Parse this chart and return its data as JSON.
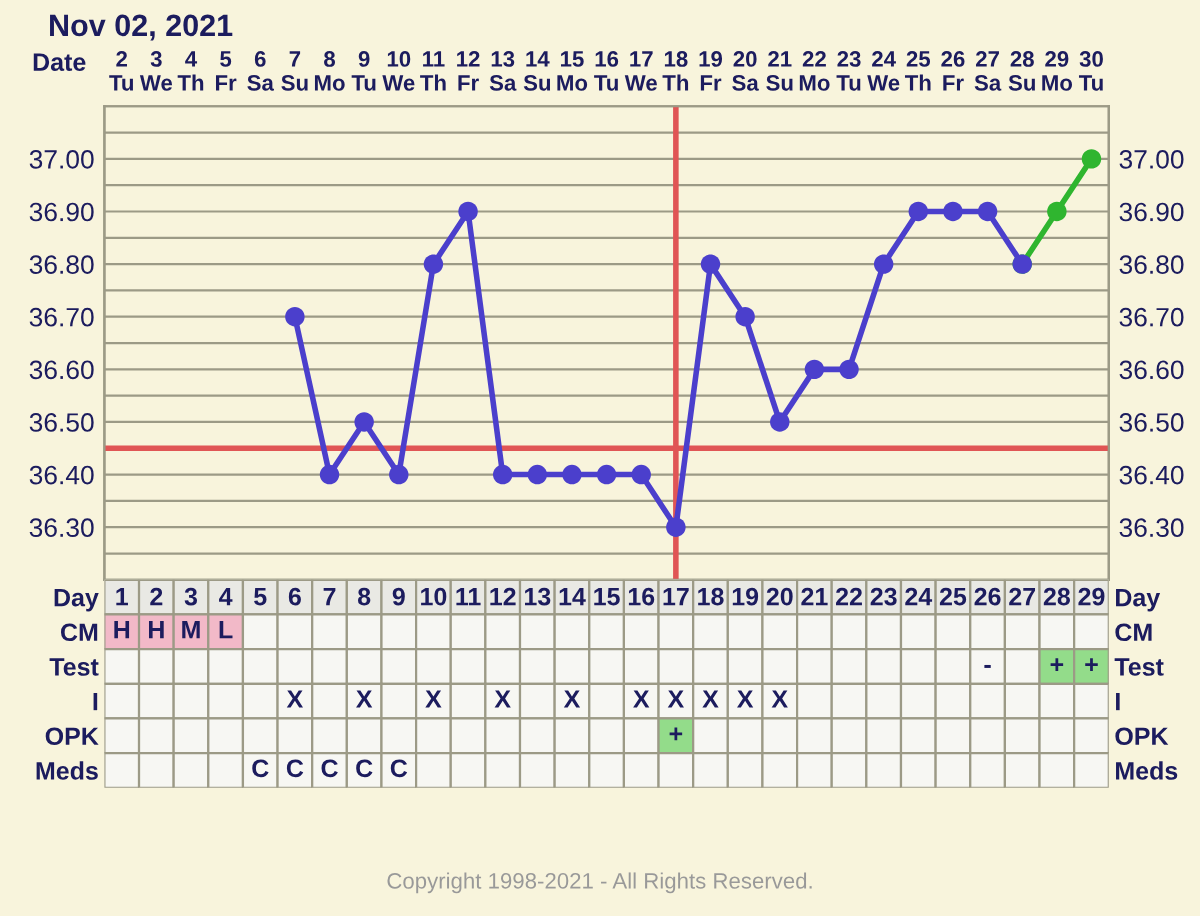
{
  "chart_data": [
    {
      "type": "line",
      "title": "Nov 02, 2021",
      "xlabel": "Date",
      "categories": [
        "2\nTu",
        "3\nWe",
        "4\nTh",
        "5\nFr",
        "6\nSa",
        "7\nSu",
        "8\nMo",
        "9\nTu",
        "10\nWe",
        "11\nTh",
        "12\nFr",
        "13\nSa",
        "14\nSu",
        "15\nMo",
        "16\nTu",
        "17\nWe",
        "18\nTh",
        "19\nFr",
        "20\nSa",
        "21\nSu",
        "22\nMo",
        "23\nTu",
        "24\nWe",
        "25\nTh",
        "26\nFr",
        "27\nSa",
        "28\nSu",
        "29\nMo",
        "30\nTu"
      ],
      "series": [
        {
          "color": "#4b3fcc",
          "values": [
            null,
            null,
            null,
            null,
            null,
            36.7,
            36.4,
            36.5,
            36.4,
            36.8,
            36.9,
            36.4,
            36.4,
            36.4,
            36.4,
            36.4,
            36.3,
            36.8,
            36.7,
            36.5,
            36.6,
            36.6,
            36.8,
            36.9,
            36.9,
            36.9,
            36.8,
            null,
            null
          ]
        },
        {
          "color": "#2fb52f",
          "values": [
            null,
            null,
            null,
            null,
            null,
            null,
            null,
            null,
            null,
            null,
            null,
            null,
            null,
            null,
            null,
            null,
            null,
            null,
            null,
            null,
            null,
            null,
            null,
            null,
            null,
            null,
            36.8,
            36.9,
            37.0
          ]
        }
      ],
      "ylim": [
        36.2,
        37.1
      ],
      "yticks": [
        {
          "value": 36.25,
          "label": null
        },
        {
          "value": 36.3,
          "label": "36.30"
        },
        {
          "value": 36.35,
          "label": null
        },
        {
          "value": 36.4,
          "label": "36.40"
        },
        {
          "value": 36.5,
          "label": "36.50"
        },
        {
          "value": 36.55,
          "label": null
        },
        {
          "value": 36.6,
          "label": "36.60"
        },
        {
          "value": 36.65,
          "label": null
        },
        {
          "value": 36.7,
          "label": "36.70"
        },
        {
          "value": 36.75,
          "label": null
        },
        {
          "value": 36.8,
          "label": "36.80"
        },
        {
          "value": 36.85,
          "label": null
        },
        {
          "value": 36.9,
          "label": "36.90"
        },
        {
          "value": 36.95,
          "label": null
        },
        {
          "value": 37.0,
          "label": "37.00"
        },
        {
          "value": 37.05,
          "label": null
        }
      ],
      "y2lim": [
        36.2,
        37.1
      ],
      "y2ticks": [
        {
          "value": 36.25,
          "label": null
        },
        {
          "value": 36.3,
          "label": "36.30"
        },
        {
          "value": 36.35,
          "label": null
        },
        {
          "value": 36.4,
          "label": "36.40"
        },
        {
          "value": 36.5,
          "label": "36.50"
        },
        {
          "value": 36.55,
          "label": null
        },
        {
          "value": 36.6,
          "label": "36.60"
        },
        {
          "value": 36.65,
          "label": null
        },
        {
          "value": 36.7,
          "label": "36.70"
        },
        {
          "value": 36.75,
          "label": null
        },
        {
          "value": 36.8,
          "label": "36.80"
        },
        {
          "value": 36.85,
          "label": null
        },
        {
          "value": 36.9,
          "label": "36.90"
        },
        {
          "value": 36.95,
          "label": null
        },
        {
          "value": 37.0,
          "label": "37.00"
        },
        {
          "value": 37.05,
          "label": null
        }
      ],
      "ref_lines": [
        {
          "axis": "y",
          "value": 36.45,
          "color": "#e05555"
        },
        {
          "axis": "x",
          "value": "18\nTh",
          "color": "#e05555"
        }
      ],
      "grid": true,
      "marker": "circle",
      "line_style": "solid",
      "legend": false
    },
    {
      "type": "heatmap",
      "cells": [
        [
          null,
          null,
          null,
          null,
          null,
          null,
          null,
          null,
          null,
          null,
          null,
          null,
          null,
          null,
          null,
          null,
          null,
          null,
          null,
          null,
          null,
          null,
          null,
          null,
          null,
          null,
          null,
          null,
          null
        ],
        [
          null,
          null,
          null,
          null,
          null,
          null,
          null,
          null,
          null,
          null,
          null,
          null,
          null,
          null,
          null,
          null,
          null,
          null,
          null,
          null,
          null,
          null,
          null,
          null,
          null,
          null,
          null,
          null,
          null
        ],
        [
          null,
          null,
          null,
          null,
          null,
          null,
          null,
          null,
          null,
          null,
          null,
          null,
          null,
          null,
          null,
          null,
          null,
          null,
          null,
          null,
          null,
          null,
          null,
          null,
          null,
          null,
          null,
          null,
          null
        ],
        [
          null,
          null,
          null,
          null,
          null,
          null,
          null,
          null,
          null,
          null,
          null,
          null,
          null,
          null,
          null,
          null,
          null,
          null,
          null,
          null,
          null,
          null,
          null,
          null,
          null,
          null,
          null,
          null,
          null
        ],
        [
          null,
          null,
          null,
          null,
          null,
          null,
          null,
          null,
          null,
          null,
          null,
          null,
          null,
          null,
          null,
          null,
          null,
          null,
          null,
          null,
          null,
          null,
          null,
          null,
          null,
          null,
          null,
          null,
          null
        ],
        [
          null,
          null,
          null,
          null,
          null,
          null,
          null,
          null,
          null,
          null,
          null,
          null,
          null,
          null,
          null,
          null,
          null,
          null,
          null,
          null,
          null,
          null,
          null,
          null,
          null,
          null,
          null,
          null,
          null
        ]
      ],
      "categories": [
        "1",
        "2",
        "3",
        "4",
        "5",
        "6",
        "7",
        "8",
        "9",
        "10",
        "11",
        "12",
        "13",
        "14",
        "15",
        "16",
        "17",
        "18",
        "19",
        "20",
        "21",
        "22",
        "23",
        "24",
        "25",
        "26",
        "27",
        "28",
        "29"
      ],
      "y_categories": [
        "Day",
        "CM",
        "Test",
        "I",
        "OPK",
        "Meds"
      ],
      "y2_categories": [
        "Day",
        "CM",
        "Test",
        "I",
        "OPK",
        "Meds"
      ],
      "cell_labels": [
        [
          null,
          null,
          null,
          null,
          null,
          null,
          null,
          null,
          null,
          null,
          null,
          null,
          null,
          null,
          null,
          null,
          null,
          null,
          null,
          null,
          null,
          null,
          null,
          null,
          null,
          null,
          null,
          null,
          null
        ],
        [
          "H",
          "H",
          "M",
          "L",
          null,
          null,
          null,
          null,
          null,
          null,
          null,
          null,
          null,
          null,
          null,
          null,
          null,
          null,
          null,
          null,
          null,
          null,
          null,
          null,
          null,
          null,
          null,
          null,
          null
        ],
        [
          null,
          null,
          null,
          null,
          null,
          null,
          null,
          null,
          null,
          null,
          null,
          null,
          null,
          null,
          null,
          null,
          null,
          null,
          null,
          null,
          null,
          null,
          null,
          null,
          null,
          "-",
          null,
          "+",
          "+"
        ],
        [
          null,
          null,
          null,
          null,
          null,
          "X",
          null,
          "X",
          null,
          "X",
          null,
          "X",
          null,
          "X",
          null,
          "X",
          "X",
          "X",
          "X",
          "X",
          null,
          null,
          null,
          null,
          null,
          null,
          null,
          null,
          null
        ],
        [
          null,
          null,
          null,
          null,
          null,
          null,
          null,
          null,
          null,
          null,
          null,
          null,
          null,
          null,
          null,
          null,
          "+",
          null,
          null,
          null,
          null,
          null,
          null,
          null,
          null,
          null,
          null,
          null,
          null
        ],
        [
          null,
          null,
          null,
          null,
          "C",
          "C",
          "C",
          "C",
          "C",
          null,
          null,
          null,
          null,
          null,
          null,
          null,
          null,
          null,
          null,
          null,
          null,
          null,
          null,
          null,
          null,
          null,
          null,
          null,
          null
        ]
      ],
      "colors": [
        [
          "#e9e9e4",
          "#e9e9e4",
          "#e9e9e4",
          "#e9e9e4",
          "#e9e9e4",
          "#e9e9e4",
          "#e9e9e4",
          "#e9e9e4",
          "#e9e9e4",
          "#e9e9e4",
          "#e9e9e4",
          "#e9e9e4",
          "#e9e9e4",
          "#e9e9e4",
          "#e9e9e4",
          "#e9e9e4",
          "#e9e9e4",
          "#e9e9e4",
          "#e9e9e4",
          "#e9e9e4",
          "#e9e9e4",
          "#e9e9e4",
          "#e9e9e4",
          "#e9e9e4",
          "#e9e9e4",
          "#e9e9e4",
          "#e9e9e4",
          "#e9e9e4",
          "#e9e9e4"
        ],
        [
          "#f2b9c8",
          "#f2b9c8",
          "#f2b9c8",
          "#f2b9c8",
          null,
          null,
          null,
          null,
          null,
          null,
          null,
          null,
          null,
          null,
          null,
          null,
          null,
          null,
          null,
          null,
          null,
          null,
          null,
          null,
          null,
          null,
          null,
          null,
          null
        ],
        [
          null,
          null,
          null,
          null,
          null,
          null,
          null,
          null,
          null,
          null,
          null,
          null,
          null,
          null,
          null,
          null,
          null,
          null,
          null,
          null,
          null,
          null,
          null,
          null,
          null,
          null,
          null,
          "#93dc8a",
          "#93dc8a"
        ],
        [
          null,
          null,
          null,
          null,
          null,
          null,
          null,
          null,
          null,
          null,
          null,
          null,
          null,
          null,
          null,
          null,
          null,
          null,
          null,
          null,
          null,
          null,
          null,
          null,
          null,
          null,
          null,
          null,
          null
        ],
        [
          null,
          null,
          null,
          null,
          null,
          null,
          null,
          null,
          null,
          null,
          null,
          null,
          null,
          null,
          null,
          null,
          "#93dc8a",
          null,
          null,
          null,
          null,
          null,
          null,
          null,
          null,
          null,
          null,
          null,
          null
        ],
        [
          null,
          null,
          null,
          null,
          null,
          null,
          null,
          null,
          null,
          null,
          null,
          null,
          null,
          null,
          null,
          null,
          null,
          null,
          null,
          null,
          null,
          null,
          null,
          null,
          null,
          null,
          null,
          null,
          null
        ]
      ],
      "annotations": [
        "Copyright 1998-2021 - All Rights Reserved."
      ]
    }
  ]
}
